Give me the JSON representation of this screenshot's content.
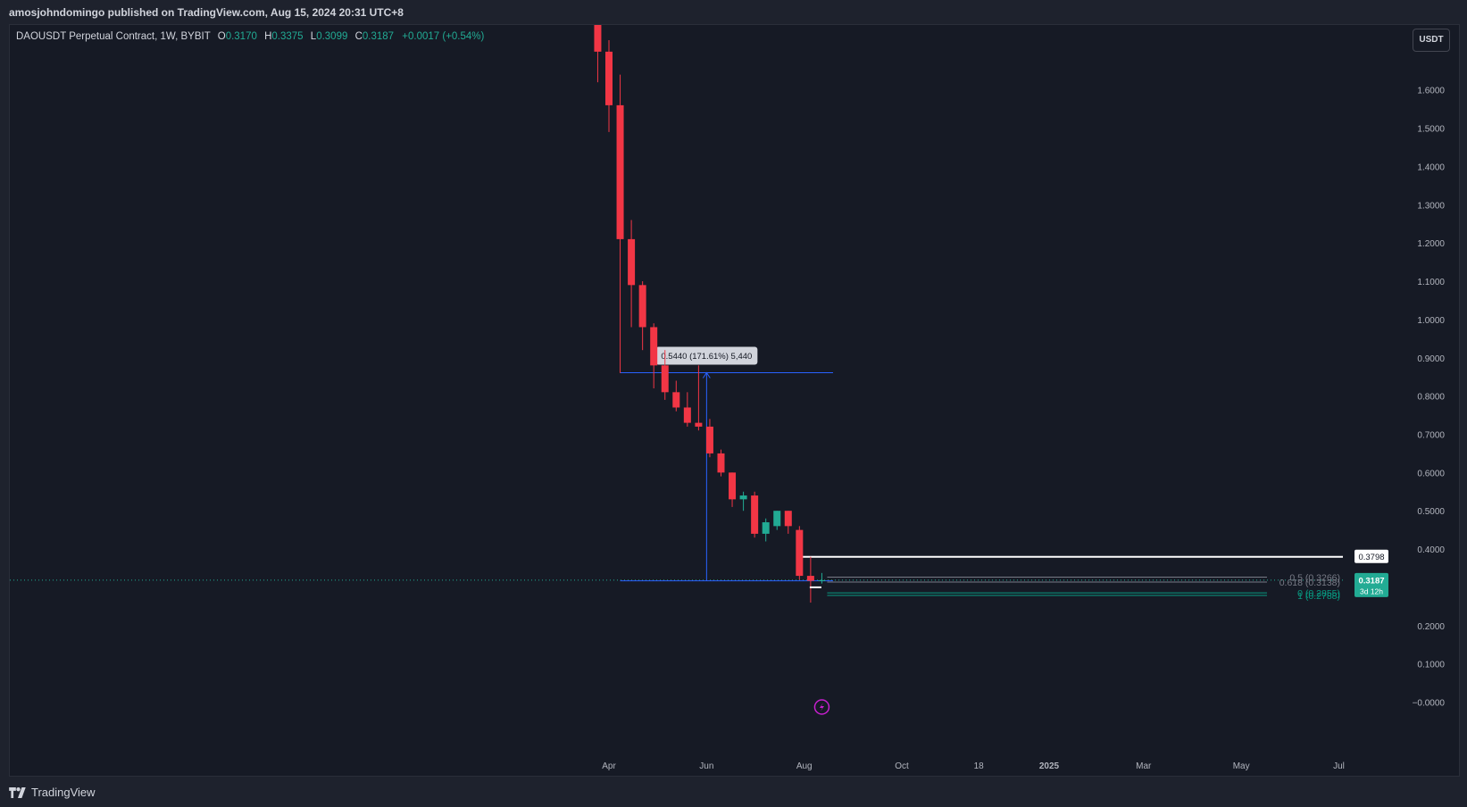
{
  "header": {
    "publisher": "amosjohndomingo published on TradingView.com, Aug 15, 2024 20:31 UTC+8"
  },
  "legend": {
    "symbol": "DAOUSDT Perpetual Contract, 1W, BYBIT",
    "o_label": "O",
    "o": "0.3170",
    "h_label": "H",
    "h": "0.3375",
    "l_label": "L",
    "l": "0.3099",
    "c_label": "C",
    "c": "0.3187",
    "change": "+0.0017 (+0.54%)"
  },
  "toolbar": {
    "currency": "USDT"
  },
  "colors": {
    "up": "#22ab94",
    "down": "#f23645",
    "background": "#161a25",
    "measure": "#2962ff"
  },
  "chart_data": {
    "type": "candlestick",
    "interval": "1W",
    "y_ticks": [
      "1.6000",
      "1.5000",
      "1.4000",
      "1.3000",
      "1.2000",
      "1.1000",
      "1.0000",
      "0.9000",
      "0.8000",
      "0.7000",
      "0.6000",
      "0.5000",
      "0.4000",
      "0.2000",
      "0.1000",
      "−0.0000"
    ],
    "y_tick_values": [
      1.6,
      1.5,
      1.4,
      1.3,
      1.2,
      1.1,
      1.0,
      0.9,
      0.8,
      0.7,
      0.6,
      0.5,
      0.4,
      0.2,
      0.1,
      0.0
    ],
    "ylim": [
      -0.05,
      1.75
    ],
    "x_ticks": [
      "Apr",
      "Jun",
      "Aug",
      "Oct",
      "18",
      "2025",
      "Mar",
      "May",
      "Jul"
    ],
    "x_tick_dates": [
      "2024-04-01",
      "2024-06-01",
      "2024-08-01",
      "2024-10-01",
      "2024-11-18",
      "2025-01-01",
      "2025-03-01",
      "2025-05-01",
      "2025-07-01"
    ],
    "xlim": [
      "2023-01-01",
      "2025-07-29"
    ],
    "candles": [
      {
        "date": "2024-03-25",
        "o": 1.78,
        "h": 1.8,
        "l": 1.62,
        "c": 1.7
      },
      {
        "date": "2024-04-01",
        "o": 1.7,
        "h": 1.73,
        "l": 1.49,
        "c": 1.56
      },
      {
        "date": "2024-04-08",
        "o": 1.56,
        "h": 1.64,
        "l": 0.86,
        "c": 1.21
      },
      {
        "date": "2024-04-15",
        "o": 1.21,
        "h": 1.26,
        "l": 0.98,
        "c": 1.09
      },
      {
        "date": "2024-04-22",
        "o": 1.09,
        "h": 1.1,
        "l": 0.92,
        "c": 0.98
      },
      {
        "date": "2024-04-29",
        "o": 0.98,
        "h": 0.99,
        "l": 0.82,
        "c": 0.88
      },
      {
        "date": "2024-05-06",
        "o": 0.88,
        "h": 0.92,
        "l": 0.79,
        "c": 0.81
      },
      {
        "date": "2024-05-13",
        "o": 0.81,
        "h": 0.84,
        "l": 0.76,
        "c": 0.77
      },
      {
        "date": "2024-05-20",
        "o": 0.77,
        "h": 0.81,
        "l": 0.72,
        "c": 0.73
      },
      {
        "date": "2024-05-27",
        "o": 0.73,
        "h": 0.88,
        "l": 0.71,
        "c": 0.72
      },
      {
        "date": "2024-06-03",
        "o": 0.72,
        "h": 0.74,
        "l": 0.64,
        "c": 0.65
      },
      {
        "date": "2024-06-10",
        "o": 0.65,
        "h": 0.66,
        "l": 0.59,
        "c": 0.6
      },
      {
        "date": "2024-06-17",
        "o": 0.6,
        "h": 0.6,
        "l": 0.51,
        "c": 0.53
      },
      {
        "date": "2024-06-24",
        "o": 0.53,
        "h": 0.55,
        "l": 0.5,
        "c": 0.54
      },
      {
        "date": "2024-07-01",
        "o": 0.54,
        "h": 0.55,
        "l": 0.43,
        "c": 0.44
      },
      {
        "date": "2024-07-08",
        "o": 0.44,
        "h": 0.48,
        "l": 0.42,
        "c": 0.47
      },
      {
        "date": "2024-07-15",
        "o": 0.46,
        "h": 0.5,
        "l": 0.45,
        "c": 0.5
      },
      {
        "date": "2024-07-22",
        "o": 0.5,
        "h": 0.5,
        "l": 0.44,
        "c": 0.46
      },
      {
        "date": "2024-07-29",
        "o": 0.45,
        "h": 0.46,
        "l": 0.32,
        "c": 0.33
      },
      {
        "date": "2024-08-05",
        "o": 0.33,
        "h": 0.38,
        "l": 0.26,
        "c": 0.317
      },
      {
        "date": "2024-08-12",
        "o": 0.317,
        "h": 0.3375,
        "l": 0.3099,
        "c": 0.3187
      }
    ],
    "current_price": "0.3187",
    "countdown": "3d 12h",
    "resistance_price": "0.3798",
    "fib_levels": [
      {
        "label": "0.5 (0.3266)",
        "value": 0.3266,
        "color": "#787b86"
      },
      {
        "label": "0.618 (0.3138)",
        "value": 0.3138,
        "color": "#787b86"
      },
      {
        "label": "0 (0.2855)",
        "value": 0.2855,
        "color": "#089981"
      },
      {
        "label": "1 (0.2788)",
        "value": 0.2788,
        "color": "#089981"
      }
    ],
    "measure": {
      "label": "0.5440 (171.61%) 5,440",
      "from_date": "2024-04-08",
      "to_date": "2024-08-19",
      "low": 0.317,
      "high": 0.861,
      "arrow_date": "2024-06-01"
    }
  },
  "footer": {
    "brand": "TradingView"
  }
}
